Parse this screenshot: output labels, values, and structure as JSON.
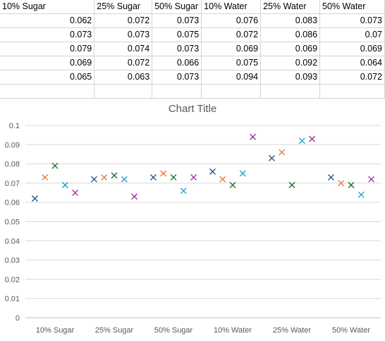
{
  "sheet": {
    "headers": [
      "10% Sugar",
      "25% Sugar",
      "50% Sugar",
      "10% Water",
      "25% Water",
      "50% Water"
    ],
    "rows": [
      [
        "0.062",
        "0.072",
        "0.073",
        "0.076",
        "0.083",
        "0.073"
      ],
      [
        "0.073",
        "0.073",
        "0.075",
        "0.072",
        "0.086",
        "0.07"
      ],
      [
        "0.079",
        "0.074",
        "0.073",
        "0.069",
        "0.069",
        "0.069"
      ],
      [
        "0.069",
        "0.072",
        "0.066",
        "0.075",
        "0.092",
        "0.064"
      ],
      [
        "0.065",
        "0.063",
        "0.073",
        "0.094",
        "0.093",
        "0.072"
      ]
    ]
  },
  "chart_data": {
    "type": "scatter",
    "title": "Chart Title",
    "categories": [
      "10% Sugar",
      "25% Sugar",
      "50% Sugar",
      "10% Water",
      "25% Water",
      "50% Water"
    ],
    "ylim": [
      0,
      0.1
    ],
    "yticks": [
      "0",
      "0.01",
      "0.02",
      "0.03",
      "0.04",
      "0.05",
      "0.06",
      "0.07",
      "0.08",
      "0.09",
      "0.1"
    ],
    "grid": true,
    "legend": "none",
    "marker": "x",
    "series": [
      {
        "color": "#1f4e79",
        "values": [
          0.062,
          0.072,
          0.073,
          0.076,
          0.083,
          0.073
        ]
      },
      {
        "color": "#e97132",
        "values": [
          0.073,
          0.073,
          0.075,
          0.072,
          0.086,
          0.07
        ]
      },
      {
        "color": "#196b24",
        "values": [
          0.079,
          0.074,
          0.073,
          0.069,
          0.069,
          0.069
        ]
      },
      {
        "color": "#0f9ed5",
        "values": [
          0.069,
          0.072,
          0.066,
          0.075,
          0.092,
          0.064
        ]
      },
      {
        "color": "#a02b93",
        "values": [
          0.065,
          0.063,
          0.073,
          0.094,
          0.093,
          0.072
        ]
      }
    ]
  }
}
